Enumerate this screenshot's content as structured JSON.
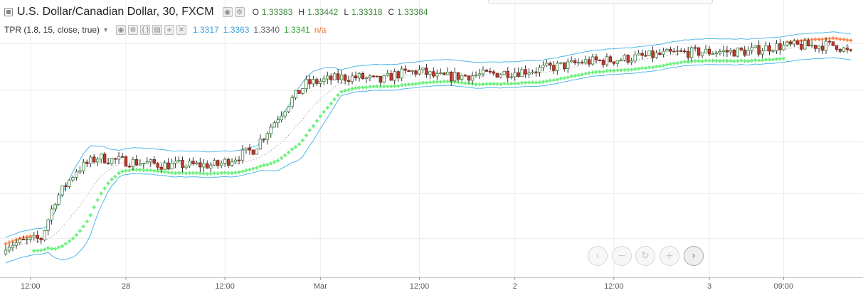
{
  "header": {
    "symbol_title": "U.S. Dollar/Canadian Dollar, 30, FXCM",
    "ohlc": [
      {
        "label": "O",
        "value": "1.33383"
      },
      {
        "label": "H",
        "value": "1.33442"
      },
      {
        "label": "L",
        "value": "1.33318"
      },
      {
        "label": "C",
        "value": "1.33384"
      }
    ]
  },
  "indicator": {
    "name": "TPR (1.8, 15, close, true)",
    "values": [
      {
        "text": "1.3317",
        "color": "#3aa0d8"
      },
      {
        "text": "1.3363",
        "color": "#3aa0d8"
      },
      {
        "text": "1.3340",
        "color": "#666666"
      },
      {
        "text": "1.3341",
        "color": "#2ea82e"
      },
      {
        "text": "n/a",
        "color": "#f07030"
      }
    ]
  },
  "colors": {
    "band": "#4fb8e8",
    "mid_dots": "#9a9a9a",
    "trail_up": "#6cf07c",
    "trail_down": "#ff8a50",
    "candle_up_fill": "#ffffff",
    "candle_down_fill": "#c0392b",
    "candle_wick": "#333333",
    "grid": "#ececec",
    "axis": "#cccccc"
  },
  "nav_buttons": [
    {
      "name": "scroll-left",
      "icon": "‹"
    },
    {
      "name": "zoom-out",
      "icon": "−"
    },
    {
      "name": "reset-chart",
      "icon": "↻"
    },
    {
      "name": "zoom-in",
      "icon": "+"
    },
    {
      "name": "scroll-right",
      "icon": "›"
    }
  ],
  "chart_data": {
    "type": "candlestick",
    "timeframe": "30",
    "bar_count": 240,
    "price_anchor_bars": [
      0,
      10,
      14,
      20,
      26,
      30,
      45,
      60,
      70,
      80,
      85,
      95,
      100,
      106,
      110,
      117,
      122,
      135,
      150,
      160,
      163,
      170,
      190,
      203,
      210,
      217,
      235,
      239
    ],
    "price_anchor_values": [
      1.321,
      1.3215,
      1.3245,
      1.3268,
      1.3278,
      1.3276,
      1.3272,
      1.3272,
      1.3284,
      1.332,
      1.3335,
      1.334,
      1.334,
      1.3337,
      1.3342,
      1.3345,
      1.334,
      1.3342,
      1.3346,
      1.335,
      1.3352,
      1.3353,
      1.3359,
      1.336,
      1.336,
      1.3364,
      1.3365,
      1.3358
    ],
    "trail_switch_bar": 221,
    "x_ticks": [
      {
        "bar": 7,
        "label": "12:00"
      },
      {
        "bar": 34,
        "label": "28"
      },
      {
        "bar": 62,
        "label": "12:00"
      },
      {
        "bar": 89,
        "label": "Mar"
      },
      {
        "bar": 117,
        "label": "12:00"
      },
      {
        "bar": 144,
        "label": "2"
      },
      {
        "bar": 172,
        "label": "12:00"
      },
      {
        "bar": 199,
        "label": "3"
      },
      {
        "bar": 220,
        "label": "09:00"
      }
    ]
  }
}
